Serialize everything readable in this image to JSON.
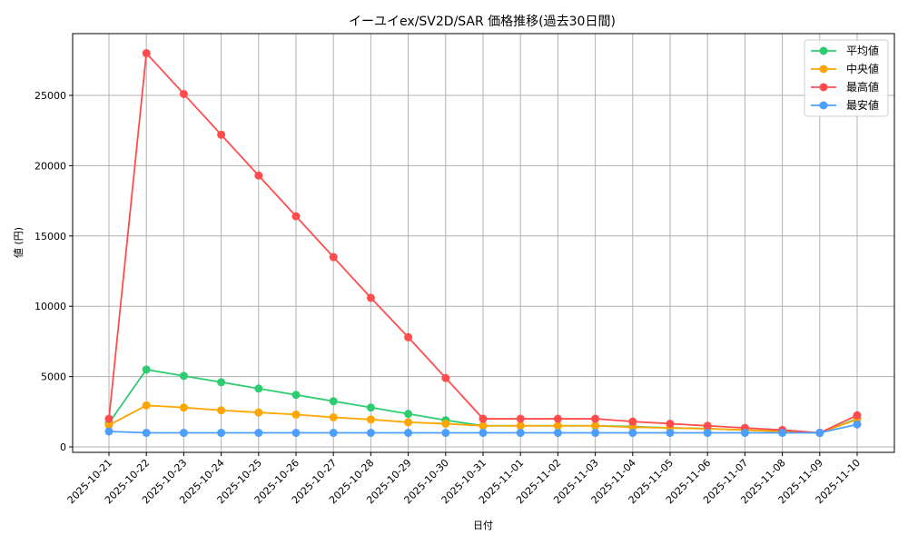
{
  "chart_data": {
    "type": "line",
    "title": "イーユイex/SV2D/SAR 価格推移(過去30日間)",
    "xlabel": "日付",
    "ylabel": "値 (円)",
    "ylim": [
      -800,
      29500
    ],
    "yticks": [
      0,
      5000,
      10000,
      15000,
      20000,
      25000
    ],
    "grid": true,
    "legend_position": "upper right",
    "categories": [
      "2025-10-21",
      "2025-10-22",
      "2025-10-23",
      "2025-10-24",
      "2025-10-25",
      "2025-10-26",
      "2025-10-27",
      "2025-10-28",
      "2025-10-29",
      "2025-10-30",
      "2025-10-31",
      "2025-11-01",
      "2025-11-02",
      "2025-11-03",
      "2025-11-04",
      "2025-11-05",
      "2025-11-06",
      "2025-11-07",
      "2025-11-08",
      "2025-11-09",
      "2025-11-10"
    ],
    "series": [
      {
        "name": "平均値",
        "color": "#2ecc71",
        "values": [
          1700,
          5500,
          5050,
          4600,
          4150,
          3700,
          3250,
          2800,
          2350,
          1900,
          1500,
          1500,
          1500,
          1500,
          1450,
          1350,
          1300,
          1200,
          1100,
          1000,
          2000
        ]
      },
      {
        "name": "中央値",
        "color": "#ffa500",
        "values": [
          1550,
          2950,
          2800,
          2600,
          2450,
          2300,
          2100,
          1950,
          1750,
          1650,
          1500,
          1500,
          1500,
          1500,
          1400,
          1350,
          1300,
          1200,
          1100,
          1000,
          1950
        ]
      },
      {
        "name": "最高値",
        "color": "#ff4d4d",
        "values": [
          2000,
          28000,
          25100,
          22200,
          19300,
          16400,
          13500,
          10600,
          7800,
          4900,
          2000,
          2000,
          2000,
          2000,
          1800,
          1650,
          1500,
          1350,
          1200,
          1000,
          2250
        ]
      },
      {
        "name": "最安値",
        "color": "#4d9fff",
        "values": [
          1100,
          1000,
          1000,
          1000,
          1000,
          1000,
          1000,
          1000,
          1000,
          1000,
          1000,
          1000,
          1000,
          1000,
          1000,
          1000,
          1000,
          1000,
          1000,
          1000,
          1600
        ]
      }
    ]
  }
}
